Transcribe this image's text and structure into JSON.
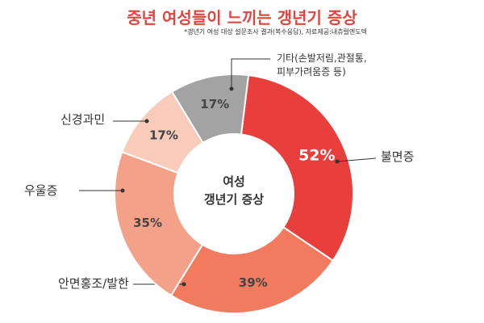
{
  "chart_data": {
    "type": "donut",
    "title": "중년 여성들이 느끼는 갱년기 증상",
    "subtitle": "*갱년기 여성 대상 설문조사 결과(복수응답), 자료제공:내츄럴엔도텍",
    "center_text": "여성\n갱년기 증상",
    "categories": [
      "불면증",
      "안면홍조/발한",
      "우울증",
      "신경과민",
      "기타(손발저림,관절통,\n피부가려움증 등)"
    ],
    "values": [
      52,
      39,
      35,
      17,
      17
    ],
    "value_labels": [
      "52%",
      "39%",
      "35%",
      "17%",
      "17%"
    ],
    "colors": [
      "#e83e3c",
      "#f27a5f",
      "#f4a189",
      "#f9cbbb",
      "#a3a3a3"
    ]
  }
}
